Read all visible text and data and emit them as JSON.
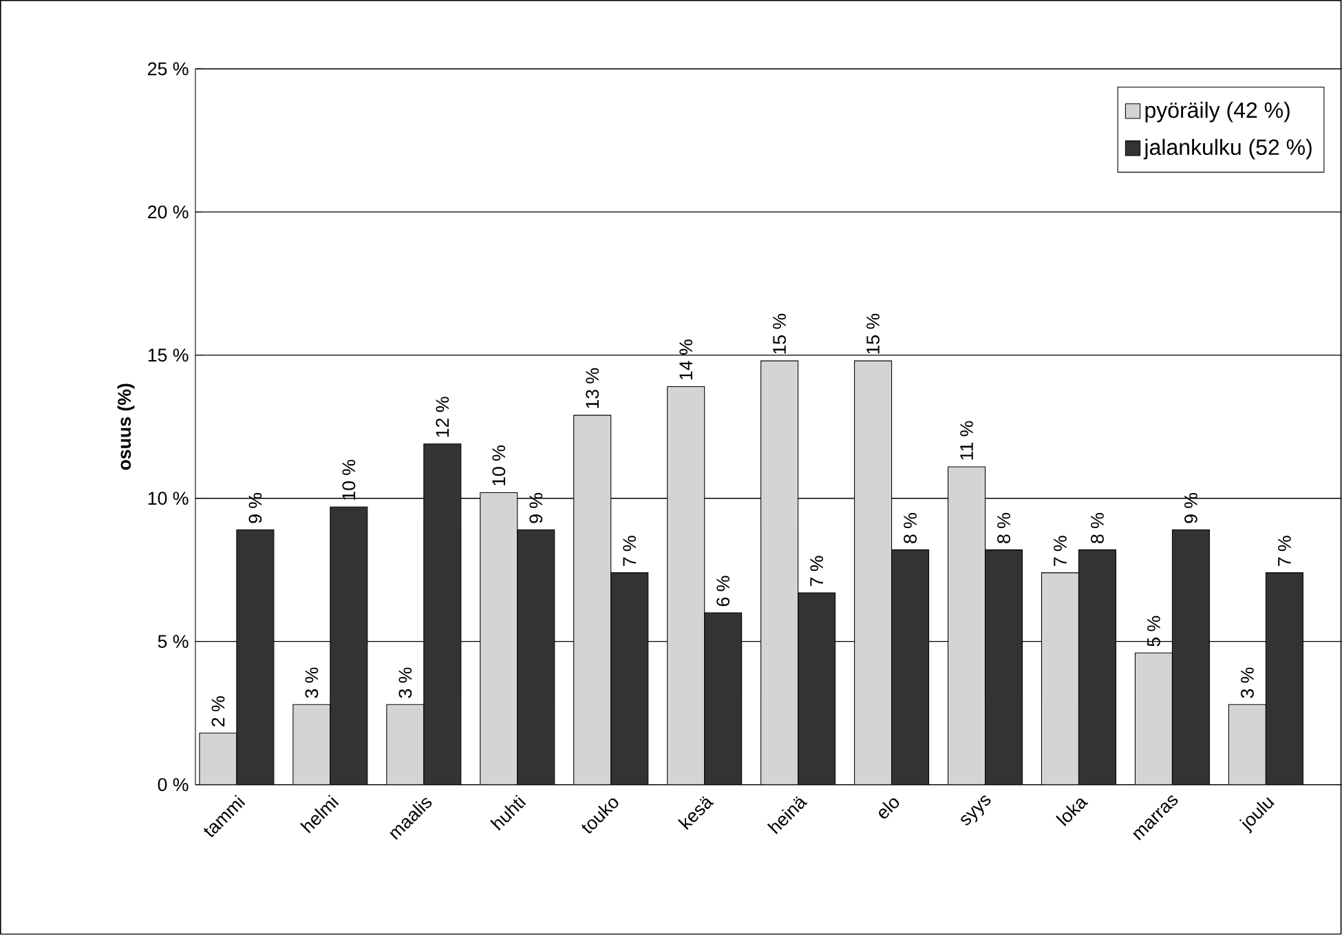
{
  "chart_data": {
    "type": "bar",
    "ylabel": "osuus (%)",
    "categories": [
      "tammi",
      "helmi",
      "maalis",
      "huhti",
      "touko",
      "kesä",
      "heinä",
      "elo",
      "syys",
      "loka",
      "marras",
      "joulu"
    ],
    "series": [
      {
        "name": "pyöräily (42 %)",
        "color": "#d4d4d4",
        "values": [
          1.8,
          2.8,
          2.8,
          10.2,
          12.9,
          13.9,
          14.8,
          14.8,
          11.1,
          7.4,
          4.6,
          2.8
        ],
        "value_labels": [
          "2 %",
          "3 %",
          "3 %",
          "10 %",
          "13 %",
          "14 %",
          "15 %",
          "15 %",
          "11 %",
          "7 %",
          "5 %",
          "3 %"
        ]
      },
      {
        "name": "jalankulku (52 %)",
        "color": "#333333",
        "values": [
          8.9,
          9.7,
          11.9,
          8.9,
          7.4,
          6.0,
          6.7,
          8.2,
          8.2,
          8.2,
          8.9,
          7.4
        ],
        "value_labels": [
          "9 %",
          "10 %",
          "12 %",
          "9 %",
          "7 %",
          "6 %",
          "7 %",
          "8 %",
          "8 %",
          "8 %",
          "9 %",
          "7 %"
        ]
      }
    ],
    "ylim": [
      0,
      25
    ],
    "yticks": [
      {
        "value": 0,
        "label": "0 %"
      },
      {
        "value": 5,
        "label": "5 %"
      },
      {
        "value": 10,
        "label": "10 %"
      },
      {
        "value": 15,
        "label": "15 %"
      },
      {
        "value": 20,
        "label": "20 %"
      },
      {
        "value": 25,
        "label": "25 %"
      }
    ],
    "grid": "y",
    "legend": "top right"
  }
}
